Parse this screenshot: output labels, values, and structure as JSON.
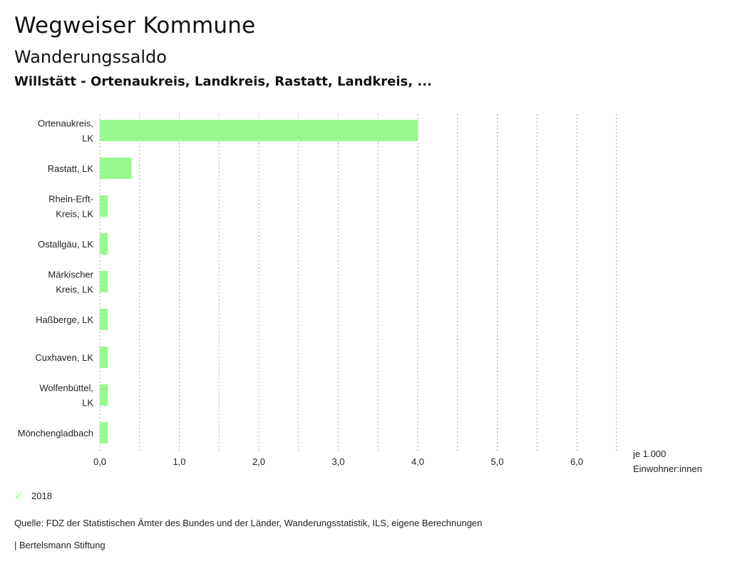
{
  "header": {
    "app_title": "Wegweiser Kommune",
    "indicator_title": "Wanderungssaldo",
    "region_title": "Willstätt - Ortenaukreis, Landkreis, Rastatt, Landkreis, ..."
  },
  "chart_data": {
    "type": "bar",
    "orientation": "horizontal",
    "categories": [
      "Ortenaukreis, LK",
      "Rastatt, LK",
      "Rhein-Erft-Kreis, LK",
      "Ostallgäu, LK",
      "Märkischer Kreis, LK",
      "Haßberge, LK",
      "Cuxhaven, LK",
      "Wolfenbüttel, LK",
      "Mönchengladbach"
    ],
    "category_lines": [
      [
        "Ortenaukreis,",
        "LK"
      ],
      [
        "Rastatt, LK"
      ],
      [
        "Rhein-Erft-",
        "Kreis, LK"
      ],
      [
        "Ostallgäu, LK"
      ],
      [
        "Märkischer",
        "Kreis, LK"
      ],
      [
        "Haßberge, LK"
      ],
      [
        "Cuxhaven, LK"
      ],
      [
        "Wolfenbüttel,",
        "LK"
      ],
      [
        "Mönchengladbach"
      ]
    ],
    "series": [
      {
        "name": "2018",
        "values": [
          4.0,
          0.4,
          0.1,
          0.1,
          0.1,
          0.1,
          0.1,
          0.1,
          0.1
        ]
      }
    ],
    "xlim": [
      0,
      6.5
    ],
    "xticks": [
      0,
      1,
      2,
      3,
      4,
      5,
      6
    ],
    "xtick_labels": [
      "0,0",
      "1,0",
      "2,0",
      "3,0",
      "4,0",
      "5,0",
      "6,0"
    ],
    "xlabel_lines": [
      "je 1.000",
      "Einwohner:innen"
    ],
    "grid": true,
    "color": "#98f98f"
  },
  "legend": {
    "label": "2018",
    "color": "#98f98f"
  },
  "footer": {
    "source": "Quelle: FDZ der Statistischen Ämter des Bundes und der Länder, Wanderungsstatistik, ILS, eigene Berechnungen",
    "credit": "| Bertelsmann Stiftung"
  }
}
